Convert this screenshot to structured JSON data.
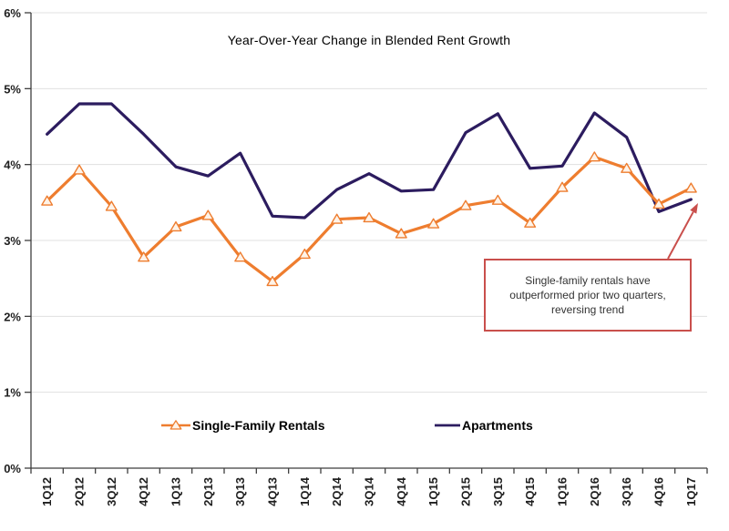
{
  "title": "Year-Over-Year Change in Blended Rent Growth",
  "colors": {
    "single_family": "#EE7D2F",
    "single_family_marker_fill": "#FEF3E8",
    "apartments": "#2C1C5F",
    "annotation": "#C94F4C",
    "grid": "#E0E0E0",
    "axis": "#3F3F3F",
    "tick_text": "#1F1F1F"
  },
  "chart_data": {
    "type": "line",
    "title": "Year-Over-Year Change in Blended Rent Growth",
    "categories": [
      "1Q12",
      "2Q12",
      "3Q12",
      "4Q12",
      "1Q13",
      "2Q13",
      "3Q13",
      "4Q13",
      "1Q14",
      "2Q14",
      "3Q14",
      "4Q14",
      "1Q15",
      "2Q15",
      "3Q15",
      "4Q15",
      "1Q16",
      "2Q16",
      "3Q16",
      "4Q16",
      "1Q17"
    ],
    "series": [
      {
        "name": "Single-Family Rentals",
        "marker": "triangle",
        "color_key": "single_family",
        "values": [
          3.52,
          3.93,
          3.45,
          2.78,
          3.18,
          3.33,
          2.78,
          2.46,
          2.82,
          3.28,
          3.3,
          3.09,
          3.22,
          3.46,
          3.53,
          3.23,
          3.7,
          4.1,
          3.95,
          3.48,
          3.69
        ]
      },
      {
        "name": "Apartments",
        "marker": "none",
        "color_key": "apartments",
        "values": [
          4.4,
          4.8,
          4.8,
          4.4,
          3.97,
          3.85,
          4.15,
          3.32,
          3.3,
          3.67,
          3.88,
          3.65,
          3.67,
          4.42,
          4.67,
          3.95,
          3.98,
          4.68,
          4.36,
          3.38,
          3.54
        ]
      }
    ],
    "ylim": [
      0,
      6
    ],
    "ytick_labels": [
      "0%",
      "1%",
      "2%",
      "3%",
      "4%",
      "5%",
      "6%"
    ],
    "grid": "horizontal-only",
    "legend_position": "bottom"
  },
  "annotation": {
    "text": "Single-family rentals have outperformed prior two quarters, reversing trend"
  }
}
